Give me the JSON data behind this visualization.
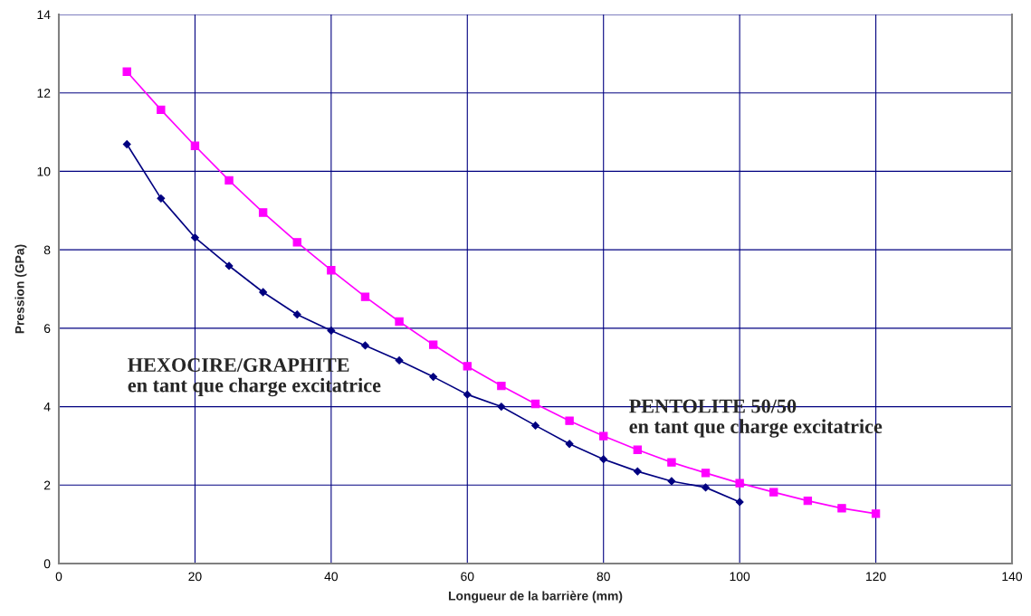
{
  "chart_data": {
    "type": "line",
    "xlabel": "Longueur de la barrière (mm)",
    "ylabel": "Pression (GPa)",
    "xlim": [
      0,
      140
    ],
    "xticks": [
      0,
      20,
      40,
      60,
      80,
      100,
      120,
      140
    ],
    "ylim": [
      0,
      14
    ],
    "yticks": [
      0,
      2,
      4,
      6,
      8,
      10,
      12,
      14
    ],
    "grid": true,
    "legend": false,
    "series": [
      {
        "name": "HEXOCIRE/GRAPHITE\nen tant que charge excitatrice",
        "color": "#000080",
        "marker": "diamond",
        "x": [
          10,
          15,
          20,
          25,
          30,
          35,
          40,
          45,
          50,
          55,
          60,
          65,
          70,
          75,
          80,
          85,
          90,
          95,
          100
        ],
        "values": [
          10.69,
          9.31,
          8.31,
          7.59,
          6.92,
          6.35,
          5.94,
          5.56,
          5.18,
          4.76,
          4.31,
          4.0,
          3.52,
          3.05,
          2.66,
          2.35,
          2.1,
          1.94,
          1.57
        ]
      },
      {
        "name": "PENTOLITE 50/50\nen tant que charge excitatrice",
        "color": "#ff00ff",
        "marker": "square",
        "x": [
          10,
          15,
          20,
          25,
          30,
          35,
          40,
          45,
          50,
          55,
          60,
          65,
          70,
          75,
          80,
          85,
          90,
          95,
          100,
          105,
          110,
          115,
          120
        ],
        "values": [
          12.54,
          11.57,
          10.65,
          9.77,
          8.95,
          8.19,
          7.48,
          6.8,
          6.17,
          5.58,
          5.03,
          4.53,
          4.07,
          3.64,
          3.25,
          2.9,
          2.58,
          2.31,
          2.05,
          1.82,
          1.6,
          1.41,
          1.27
        ]
      }
    ]
  }
}
